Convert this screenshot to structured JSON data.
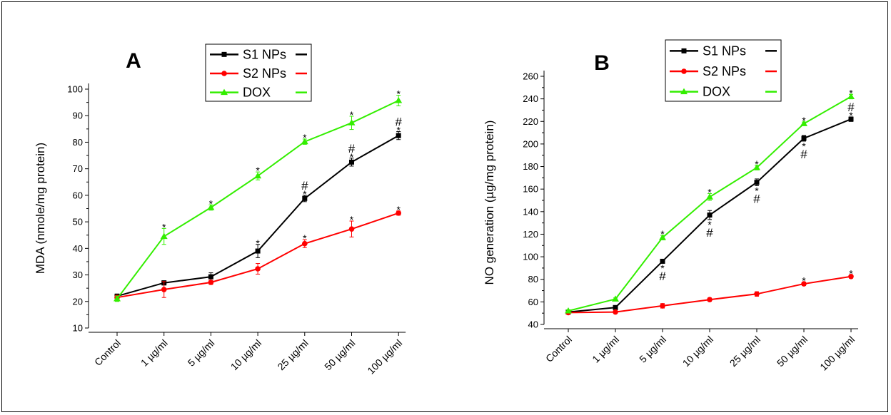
{
  "chart_data": [
    {
      "panel_label": "A",
      "type": "line",
      "categories": [
        "Control",
        "1 µg/ml",
        "5 µg/ml",
        "10 µg/ml",
        "25 µg/ml",
        "50 µg/ml",
        "100 µg/ml"
      ],
      "ylabel": "MDA (nmole/mg protein)",
      "xlabel": "",
      "ylim": [
        10,
        100
      ],
      "yticks": [
        10,
        20,
        30,
        40,
        50,
        60,
        70,
        80,
        90,
        100
      ],
      "legend_position": "top-center",
      "series": [
        {
          "name": "S1 NPs",
          "color": "#000000",
          "marker": "square",
          "values": [
            22,
            27,
            29.3,
            39,
            58.8,
            72.5,
            82.5
          ],
          "errors": [
            0.8,
            0.8,
            1.5,
            2.5,
            1.2,
            1.5,
            1.5
          ],
          "markers": [
            "",
            "",
            "",
            "*",
            "#*",
            "#*",
            "#*"
          ]
        },
        {
          "name": "S2 NPs",
          "color": "#ff0000",
          "marker": "circle",
          "values": [
            21.5,
            24.5,
            27.2,
            32.3,
            41.8,
            47.3,
            53.3
          ],
          "errors": [
            0.8,
            3,
            0.8,
            2,
            1.5,
            3,
            0.8
          ],
          "markers": [
            "",
            "",
            "",
            "",
            "*",
            "*",
            "*"
          ]
        },
        {
          "name": "DOX",
          "color": "#33ee00",
          "marker": "triangle",
          "values": [
            21,
            44.5,
            55.4,
            67.3,
            80.2,
            87.3,
            95.7
          ],
          "errors": [
            1,
            3,
            1,
            1.5,
            1,
            2.5,
            2
          ],
          "markers": [
            "",
            "*",
            "*",
            "*",
            "*",
            "*",
            "*"
          ]
        }
      ]
    },
    {
      "panel_label": "B",
      "type": "line",
      "categories": [
        "Control",
        "1 µg/ml",
        "5 µg/ml",
        "10 µg/ml",
        "25 µg/ml",
        "50 µg/ml",
        "100 µg/ml"
      ],
      "ylabel": "NO generation (µg/mg protein)",
      "xlabel": "",
      "ylim": [
        40,
        260
      ],
      "yticks": [
        40,
        60,
        80,
        100,
        120,
        140,
        160,
        180,
        200,
        220,
        240,
        260
      ],
      "legend_position": "top-center",
      "series": [
        {
          "name": "S1 NPs",
          "color": "#000000",
          "marker": "square",
          "values": [
            51,
            55,
            96,
            137,
            166,
            205,
            222
          ],
          "errors": [
            1,
            1,
            1.5,
            4,
            3,
            2.5,
            2
          ],
          "markers": [
            "",
            "",
            "*#",
            "*#",
            "*#",
            "*#",
            "#*"
          ]
        },
        {
          "name": "S2 NPs",
          "color": "#ff0000",
          "marker": "circle",
          "values": [
            50.5,
            51,
            56.5,
            62,
            67,
            76,
            82.5
          ],
          "errors": [
            1,
            1,
            2,
            1.5,
            2,
            1.5,
            1.5
          ],
          "markers": [
            "",
            "",
            "",
            "",
            "",
            "*",
            "*"
          ]
        },
        {
          "name": "DOX",
          "color": "#33ee00",
          "marker": "triangle",
          "values": [
            52,
            62.5,
            117,
            153,
            179,
            218,
            242
          ],
          "errors": [
            1,
            1,
            2,
            3,
            2,
            1.5,
            2
          ],
          "markers": [
            "",
            "",
            "*",
            "*",
            "*",
            "*",
            "*"
          ]
        }
      ]
    }
  ]
}
